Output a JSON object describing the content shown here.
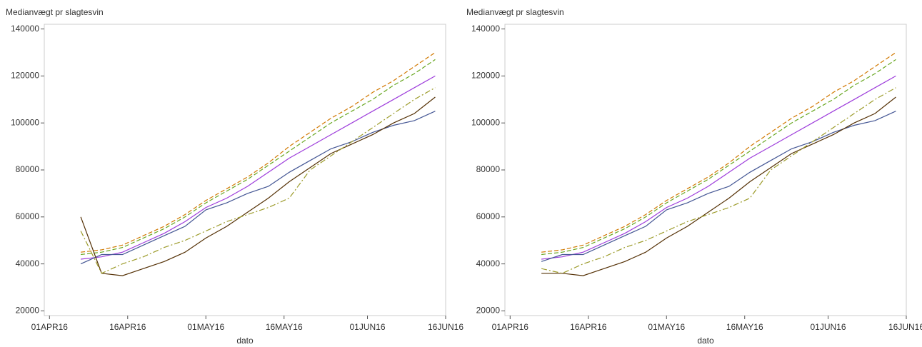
{
  "chart_data": [
    {
      "type": "line",
      "ylabel": "Medianvægt pr slagtesvin",
      "xlabel": "dato",
      "x": [
        "2016-04-07",
        "2016-04-11",
        "2016-04-15",
        "2016-04-19",
        "2016-04-23",
        "2016-04-27",
        "2016-05-01",
        "2016-05-05",
        "2016-05-09",
        "2016-05-13",
        "2016-05-17",
        "2016-05-21",
        "2016-05-25",
        "2016-05-29",
        "2016-06-02",
        "2016-06-06",
        "2016-06-10",
        "2016-06-14"
      ],
      "xlim": [
        "2016-03-31",
        "2016-06-16"
      ],
      "xticks": [
        {
          "value": "2016-04-01",
          "label": "01APR16"
        },
        {
          "value": "2016-04-16",
          "label": "16APR16"
        },
        {
          "value": "2016-05-01",
          "label": "01MAY16"
        },
        {
          "value": "2016-05-16",
          "label": "16MAY16"
        },
        {
          "value": "2016-06-01",
          "label": "01JUN16"
        },
        {
          "value": "2016-06-16",
          "label": "16JUN16"
        }
      ],
      "ylim": [
        18000,
        142000
      ],
      "yticks": [
        20000,
        40000,
        60000,
        80000,
        100000,
        120000,
        140000
      ],
      "series": [
        {
          "color": "#D17800",
          "dash": "6 3",
          "values": [
            45000,
            46000,
            48000,
            52000,
            56000,
            61000,
            67000,
            72000,
            77000,
            83000,
            90000,
            96000,
            102000,
            107000,
            113000,
            118000,
            124000,
            130000
          ]
        },
        {
          "color": "#66A61E",
          "dash": "6 3",
          "values": [
            44000,
            45000,
            47000,
            51000,
            55000,
            60000,
            66000,
            71000,
            76000,
            82000,
            88000,
            94000,
            100000,
            105000,
            110000,
            116000,
            121000,
            127000
          ]
        },
        {
          "color": "#9D3CDB",
          "dash": "",
          "values": [
            42000,
            43000,
            45000,
            49000,
            53000,
            58000,
            64000,
            68000,
            73000,
            79000,
            85000,
            90000,
            95000,
            100000,
            105000,
            110000,
            115000,
            120000
          ]
        },
        {
          "color": "#445694",
          "dash": "",
          "values": [
            40000,
            44000,
            44000,
            48000,
            52000,
            56000,
            63000,
            66000,
            70000,
            73000,
            79000,
            84000,
            89000,
            92000,
            96000,
            99000,
            101000,
            105000
          ]
        },
        {
          "color": "#543005",
          "dash": "",
          "values": [
            60000,
            36000,
            35000,
            38000,
            41000,
            45000,
            51000,
            56000,
            62000,
            68000,
            75000,
            81000,
            87000,
            91000,
            95000,
            100000,
            104000,
            111000
          ]
        },
        {
          "color": "#9C9B2A",
          "dash": "8 3 2 3",
          "values": [
            54000,
            36000,
            40000,
            43000,
            47000,
            50000,
            54000,
            58000,
            61000,
            64000,
            68000,
            80000,
            86000,
            92000,
            98000,
            104000,
            110000,
            115000
          ]
        }
      ]
    },
    {
      "type": "line",
      "ylabel": "Medianvægt pr slagtesvin",
      "xlabel": "dato",
      "x": [
        "2016-04-07",
        "2016-04-11",
        "2016-04-15",
        "2016-04-19",
        "2016-04-23",
        "2016-04-27",
        "2016-05-01",
        "2016-05-05",
        "2016-05-09",
        "2016-05-13",
        "2016-05-17",
        "2016-05-21",
        "2016-05-25",
        "2016-05-29",
        "2016-06-02",
        "2016-06-06",
        "2016-06-10",
        "2016-06-14"
      ],
      "xlim": [
        "2016-03-31",
        "2016-06-16"
      ],
      "xticks": [
        {
          "value": "2016-04-01",
          "label": "01APR16"
        },
        {
          "value": "2016-04-16",
          "label": "16APR16"
        },
        {
          "value": "2016-05-01",
          "label": "01MAY16"
        },
        {
          "value": "2016-05-16",
          "label": "16MAY16"
        },
        {
          "value": "2016-06-01",
          "label": "01JUN16"
        },
        {
          "value": "2016-06-16",
          "label": "16JUN16"
        }
      ],
      "ylim": [
        18000,
        142000
      ],
      "yticks": [
        20000,
        40000,
        60000,
        80000,
        100000,
        120000,
        140000
      ],
      "series": [
        {
          "color": "#D17800",
          "dash": "6 3",
          "values": [
            45000,
            46000,
            48000,
            52000,
            56000,
            61000,
            67000,
            72000,
            77000,
            83000,
            90000,
            96000,
            102000,
            107000,
            113000,
            118000,
            124000,
            130000
          ]
        },
        {
          "color": "#66A61E",
          "dash": "6 3",
          "values": [
            44000,
            45000,
            47000,
            51000,
            55000,
            60000,
            66000,
            71000,
            76000,
            82000,
            88000,
            94000,
            100000,
            105000,
            110000,
            116000,
            121000,
            127000
          ]
        },
        {
          "color": "#9D3CDB",
          "dash": "",
          "values": [
            42000,
            43000,
            45000,
            49000,
            53000,
            58000,
            64000,
            68000,
            73000,
            79000,
            85000,
            90000,
            95000,
            100000,
            105000,
            110000,
            115000,
            120000
          ]
        },
        {
          "color": "#445694",
          "dash": "",
          "values": [
            41000,
            44000,
            44000,
            48000,
            52000,
            56000,
            63000,
            66000,
            70000,
            73000,
            79000,
            84000,
            89000,
            92000,
            96000,
            99000,
            101000,
            105000
          ]
        },
        {
          "color": "#543005",
          "dash": "",
          "values": [
            36000,
            36000,
            35000,
            38000,
            41000,
            45000,
            51000,
            56000,
            62000,
            68000,
            75000,
            81000,
            87000,
            91000,
            95000,
            100000,
            104000,
            111000
          ]
        },
        {
          "color": "#9C9B2A",
          "dash": "8 3 2 3",
          "values": [
            38000,
            36000,
            40000,
            43000,
            47000,
            50000,
            54000,
            58000,
            61000,
            64000,
            68000,
            80000,
            86000,
            92000,
            98000,
            104000,
            110000,
            115000
          ]
        }
      ]
    }
  ]
}
